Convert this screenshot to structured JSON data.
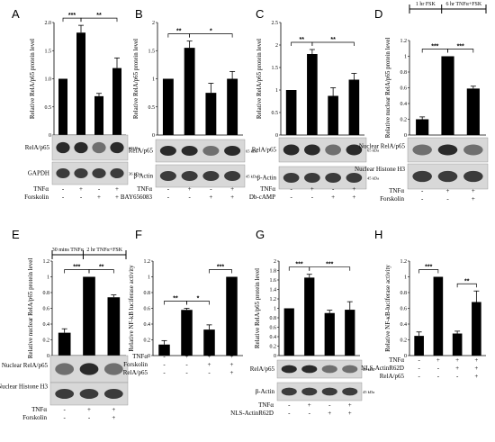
{
  "chart_data": [
    {
      "panel": "A",
      "type": "bar",
      "ylabel": "Relative RelA/p65 protein level",
      "ylim": [
        0,
        2
      ],
      "yticks": [
        "0",
        "0.5",
        "1.0",
        "1.5",
        "2.0"
      ],
      "values": [
        1.0,
        1.82,
        0.69,
        1.19
      ],
      "errors": [
        0,
        0.13,
        0.05,
        0.18
      ],
      "sig": [
        {
          "from": 0,
          "to": 1,
          "label": "***"
        },
        {
          "from": 1,
          "to": 3,
          "label": "**"
        }
      ],
      "blots": [
        {
          "label": "RelA/p65",
          "kda": "65kDa"
        },
        {
          "label": "GAPDH",
          "kda": "36 kDa"
        }
      ],
      "conditions": [
        {
          "label": "TNFα",
          "signs": [
            "-",
            "+",
            "-",
            "+"
          ]
        },
        {
          "label": "Forskolin",
          "signs": [
            "-",
            "-",
            "+",
            "+"
          ]
        }
      ]
    },
    {
      "panel": "B",
      "type": "bar",
      "ylabel": "Relative RelA/p65 protein level",
      "ylim": [
        0,
        2
      ],
      "yticks": [
        "0",
        "0.5",
        "1",
        "1.5",
        "2"
      ],
      "values": [
        1.0,
        1.55,
        0.75,
        1.0
      ],
      "errors": [
        0,
        0.12,
        0.17,
        0.13
      ],
      "sig": [
        {
          "from": 0,
          "to": 1,
          "label": "**"
        },
        {
          "from": 1,
          "to": 3,
          "label": "*"
        }
      ],
      "blots": [
        {
          "label": "RelA/p65",
          "kda": "65 kDa"
        },
        {
          "label": "β-Actin",
          "kda": "45 kDa"
        }
      ],
      "conditions": [
        {
          "label": "TNFα",
          "signs": [
            "-",
            "+",
            "-",
            "+"
          ]
        },
        {
          "label": "BAY656083",
          "signs": [
            "-",
            "-",
            "+",
            "+"
          ]
        }
      ]
    },
    {
      "panel": "C",
      "type": "bar",
      "ylabel": "Relative RelA/p65 protein level",
      "ylim": [
        0,
        2.5
      ],
      "yticks": [
        "0",
        "0.5",
        "1",
        "1.5",
        "2",
        "2.5"
      ],
      "values": [
        1.0,
        1.8,
        0.87,
        1.23
      ],
      "errors": [
        0,
        0.1,
        0.18,
        0.14
      ],
      "sig": [
        {
          "from": 0,
          "to": 1,
          "label": "**"
        },
        {
          "from": 1,
          "to": 3,
          "label": "**"
        }
      ],
      "blots": [
        {
          "label": "RelA/p65",
          "kda": "65 kDa"
        },
        {
          "label": "β-Actin",
          "kda": "45 kDa"
        }
      ],
      "conditions": [
        {
          "label": "TNFα",
          "signs": [
            "-",
            "+",
            "-",
            "+"
          ]
        },
        {
          "label": "Db-cAMP",
          "signs": [
            "-",
            "-",
            "+",
            "+"
          ]
        }
      ]
    },
    {
      "panel": "D",
      "type": "bar",
      "ylabel": "Relative nuclear RelA/p65 protein level",
      "ylim": [
        0,
        1.2
      ],
      "yticks": [
        "0",
        "0.2",
        "0.4",
        "0.6",
        "0.8",
        "1",
        "1.2"
      ],
      "values": [
        0.2,
        1.0,
        0.59
      ],
      "errors": [
        0.03,
        0,
        0.03
      ],
      "sig": [
        {
          "from": 0,
          "to": 1,
          "label": "***"
        },
        {
          "from": 1,
          "to": 2,
          "label": "***"
        }
      ],
      "timeline": [
        "1 hr FSK",
        "6 hr TNFα+FSK"
      ],
      "blots": [
        {
          "label": "Nuclear RelA/p65",
          "kda": ""
        },
        {
          "label": "Nuclear Histone H3",
          "kda": ""
        }
      ],
      "conditions": [
        {
          "label": "TNFα",
          "signs": [
            "-",
            "+",
            "+"
          ]
        },
        {
          "label": "Forskolin",
          "signs": [
            "-",
            "-",
            "+"
          ]
        }
      ]
    },
    {
      "panel": "E",
      "type": "bar",
      "ylabel": "Relative nuclear RelA/p65 protein level",
      "ylim": [
        0,
        1.2
      ],
      "yticks": [
        "0",
        "0.2",
        "0.4",
        "0.6",
        "0.8",
        "1",
        "1.2"
      ],
      "values": [
        0.29,
        1.0,
        0.74
      ],
      "errors": [
        0.05,
        0,
        0.03
      ],
      "sig": [
        {
          "from": 0,
          "to": 1,
          "label": "***"
        },
        {
          "from": 1,
          "to": 2,
          "label": "**"
        }
      ],
      "timeline": [
        "30 mins TNFα",
        "2 hr TNFα+FSK"
      ],
      "blots": [
        {
          "label": "Nuclear RelA/p65",
          "kda": ""
        },
        {
          "label": "Nuclear Histone H3",
          "kda": ""
        }
      ],
      "conditions": [
        {
          "label": "TNFα",
          "signs": [
            "-",
            "+",
            "+"
          ]
        },
        {
          "label": "Forskolin",
          "signs": [
            "-",
            "-",
            "+"
          ]
        }
      ]
    },
    {
      "panel": "F",
      "type": "bar",
      "ylabel": "Relative NF-kB luciferase activity",
      "ylim": [
        0,
        1.2
      ],
      "yticks": [
        "0",
        "0.2",
        "0.4",
        "0.6",
        "0.8",
        "1",
        "1.2"
      ],
      "values": [
        0.14,
        0.58,
        0.33,
        1.0
      ],
      "errors": [
        0.05,
        0.02,
        0.06,
        0
      ],
      "sig": [
        {
          "from": 0,
          "to": 1,
          "label": "**"
        },
        {
          "from": 1,
          "to": 2,
          "label": "*"
        },
        {
          "from": 2,
          "to": 3,
          "label": "***"
        }
      ],
      "blots": [],
      "conditions": [
        {
          "label": "TNFα",
          "signs": [
            "-",
            "+",
            "+",
            "+"
          ]
        },
        {
          "label": "Forskolin",
          "signs": [
            "-",
            "-",
            "+",
            "+"
          ]
        },
        {
          "label": "RelA/p65",
          "signs": [
            "-",
            "-",
            "-",
            "+"
          ]
        }
      ]
    },
    {
      "panel": "G",
      "type": "bar",
      "ylabel": "Relative RelA/p65 protein level",
      "ylim": [
        0,
        2
      ],
      "yticks": [
        "0",
        "0.2",
        "0.4",
        "0.6",
        "0.8",
        "1",
        "1.2",
        "1.4",
        "1.6",
        "1.8",
        "2"
      ],
      "values": [
        1.0,
        1.65,
        0.9,
        0.97
      ],
      "errors": [
        0,
        0.07,
        0.06,
        0.17
      ],
      "sig": [
        {
          "from": 0,
          "to": 1,
          "label": "***"
        },
        {
          "from": 1,
          "to": 3,
          "label": "***"
        }
      ],
      "blots": [
        {
          "label": "RelA/p65",
          "kda": "65 kDa"
        },
        {
          "label": "β-Actin",
          "kda": "45 kDa"
        }
      ],
      "conditions": [
        {
          "label": "TNFα",
          "signs": [
            "-",
            "+",
            "-",
            "+"
          ]
        },
        {
          "label": "NLS-ActinR62D",
          "signs": [
            "-",
            "-",
            "+",
            "+"
          ]
        }
      ]
    },
    {
      "panel": "H",
      "type": "bar",
      "ylabel": "Relative NF-κB-luciferase activity",
      "ylim": [
        0,
        1.2
      ],
      "yticks": [
        "0",
        "0.2",
        "0.4",
        "0.6",
        "0.8",
        "1",
        "1.2"
      ],
      "values": [
        0.25,
        1.0,
        0.28,
        0.68
      ],
      "errors": [
        0.05,
        0,
        0.03,
        0.14
      ],
      "sig": [
        {
          "from": 0,
          "to": 1,
          "label": "***"
        },
        {
          "from": 2,
          "to": 3,
          "label": "**"
        }
      ],
      "blots": [],
      "conditions": [
        {
          "label": "TNFα",
          "signs": [
            "-",
            "+",
            "+",
            "+"
          ]
        },
        {
          "label": "NLS-ActinR62D",
          "signs": [
            "-",
            "-",
            "+",
            "+"
          ]
        },
        {
          "label": "RelA/p65",
          "signs": [
            "-",
            "-",
            "-",
            "+"
          ]
        }
      ]
    }
  ]
}
